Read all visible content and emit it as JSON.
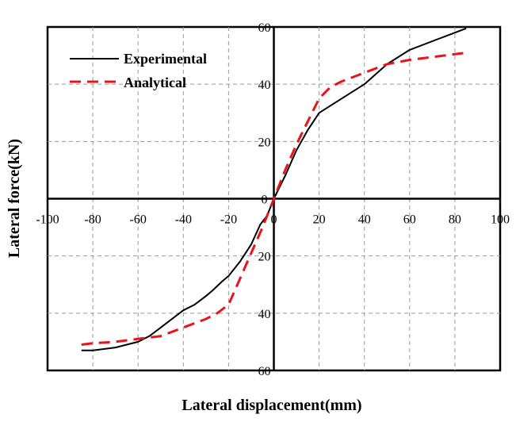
{
  "chart_data": {
    "type": "line",
    "xlabel": "Lateral displacement(mm)",
    "ylabel": "Lateral force(kN)",
    "xlim": [
      -100,
      100
    ],
    "ylim": [
      -60,
      60
    ],
    "x_ticks": [
      -100,
      -80,
      -60,
      -40,
      -20,
      0,
      20,
      40,
      60,
      80,
      100
    ],
    "y_ticks": [
      60,
      40,
      20,
      0,
      -20,
      -40,
      -60
    ],
    "x_tick_labels": [
      "-100",
      "-80",
      "-60",
      "-40",
      "-20",
      "0",
      "20",
      "40",
      "60",
      "80",
      "100"
    ],
    "y_tick_labels": [
      "60",
      "40",
      "20",
      "0",
      "20",
      "40",
      "60"
    ],
    "grid": true,
    "legend_position": "top-left",
    "series": [
      {
        "name": "Experimental",
        "color": "#000000",
        "style": "solid",
        "points": [
          [
            -85,
            -53
          ],
          [
            -80,
            -53
          ],
          [
            -70,
            -52
          ],
          [
            -60,
            -50
          ],
          [
            -55,
            -48
          ],
          [
            -50,
            -45
          ],
          [
            -45,
            -42
          ],
          [
            -40,
            -39
          ],
          [
            -35,
            -37
          ],
          [
            -30,
            -34
          ],
          [
            -27,
            -32
          ],
          [
            -23,
            -29
          ],
          [
            -20,
            -27
          ],
          [
            -15,
            -22
          ],
          [
            -10,
            -16
          ],
          [
            -6,
            -9
          ],
          [
            -3,
            -6
          ],
          [
            0,
            0
          ],
          [
            5,
            8
          ],
          [
            10,
            17
          ],
          [
            15,
            24
          ],
          [
            20,
            30
          ],
          [
            30,
            35
          ],
          [
            40,
            40
          ],
          [
            50,
            47
          ],
          [
            60,
            52
          ],
          [
            70,
            55
          ],
          [
            80,
            58
          ],
          [
            85,
            59.5
          ]
        ]
      },
      {
        "name": "Analytical",
        "color": "#e8141b",
        "style": "dashed",
        "points": [
          [
            -85,
            -51
          ],
          [
            -80,
            -50.5
          ],
          [
            -70,
            -50
          ],
          [
            -60,
            -49
          ],
          [
            -50,
            -48
          ],
          [
            -40,
            -45
          ],
          [
            -30,
            -42
          ],
          [
            -25,
            -40
          ],
          [
            -20,
            -37
          ],
          [
            -15,
            -28
          ],
          [
            -10,
            -19
          ],
          [
            -5,
            -10
          ],
          [
            0,
            0
          ],
          [
            5,
            10
          ],
          [
            10,
            19
          ],
          [
            15,
            27
          ],
          [
            20,
            35
          ],
          [
            25,
            39
          ],
          [
            30,
            41
          ],
          [
            40,
            44
          ],
          [
            50,
            47
          ],
          [
            60,
            48.5
          ],
          [
            70,
            49.5
          ],
          [
            80,
            50.5
          ],
          [
            85,
            51
          ]
        ]
      }
    ]
  }
}
